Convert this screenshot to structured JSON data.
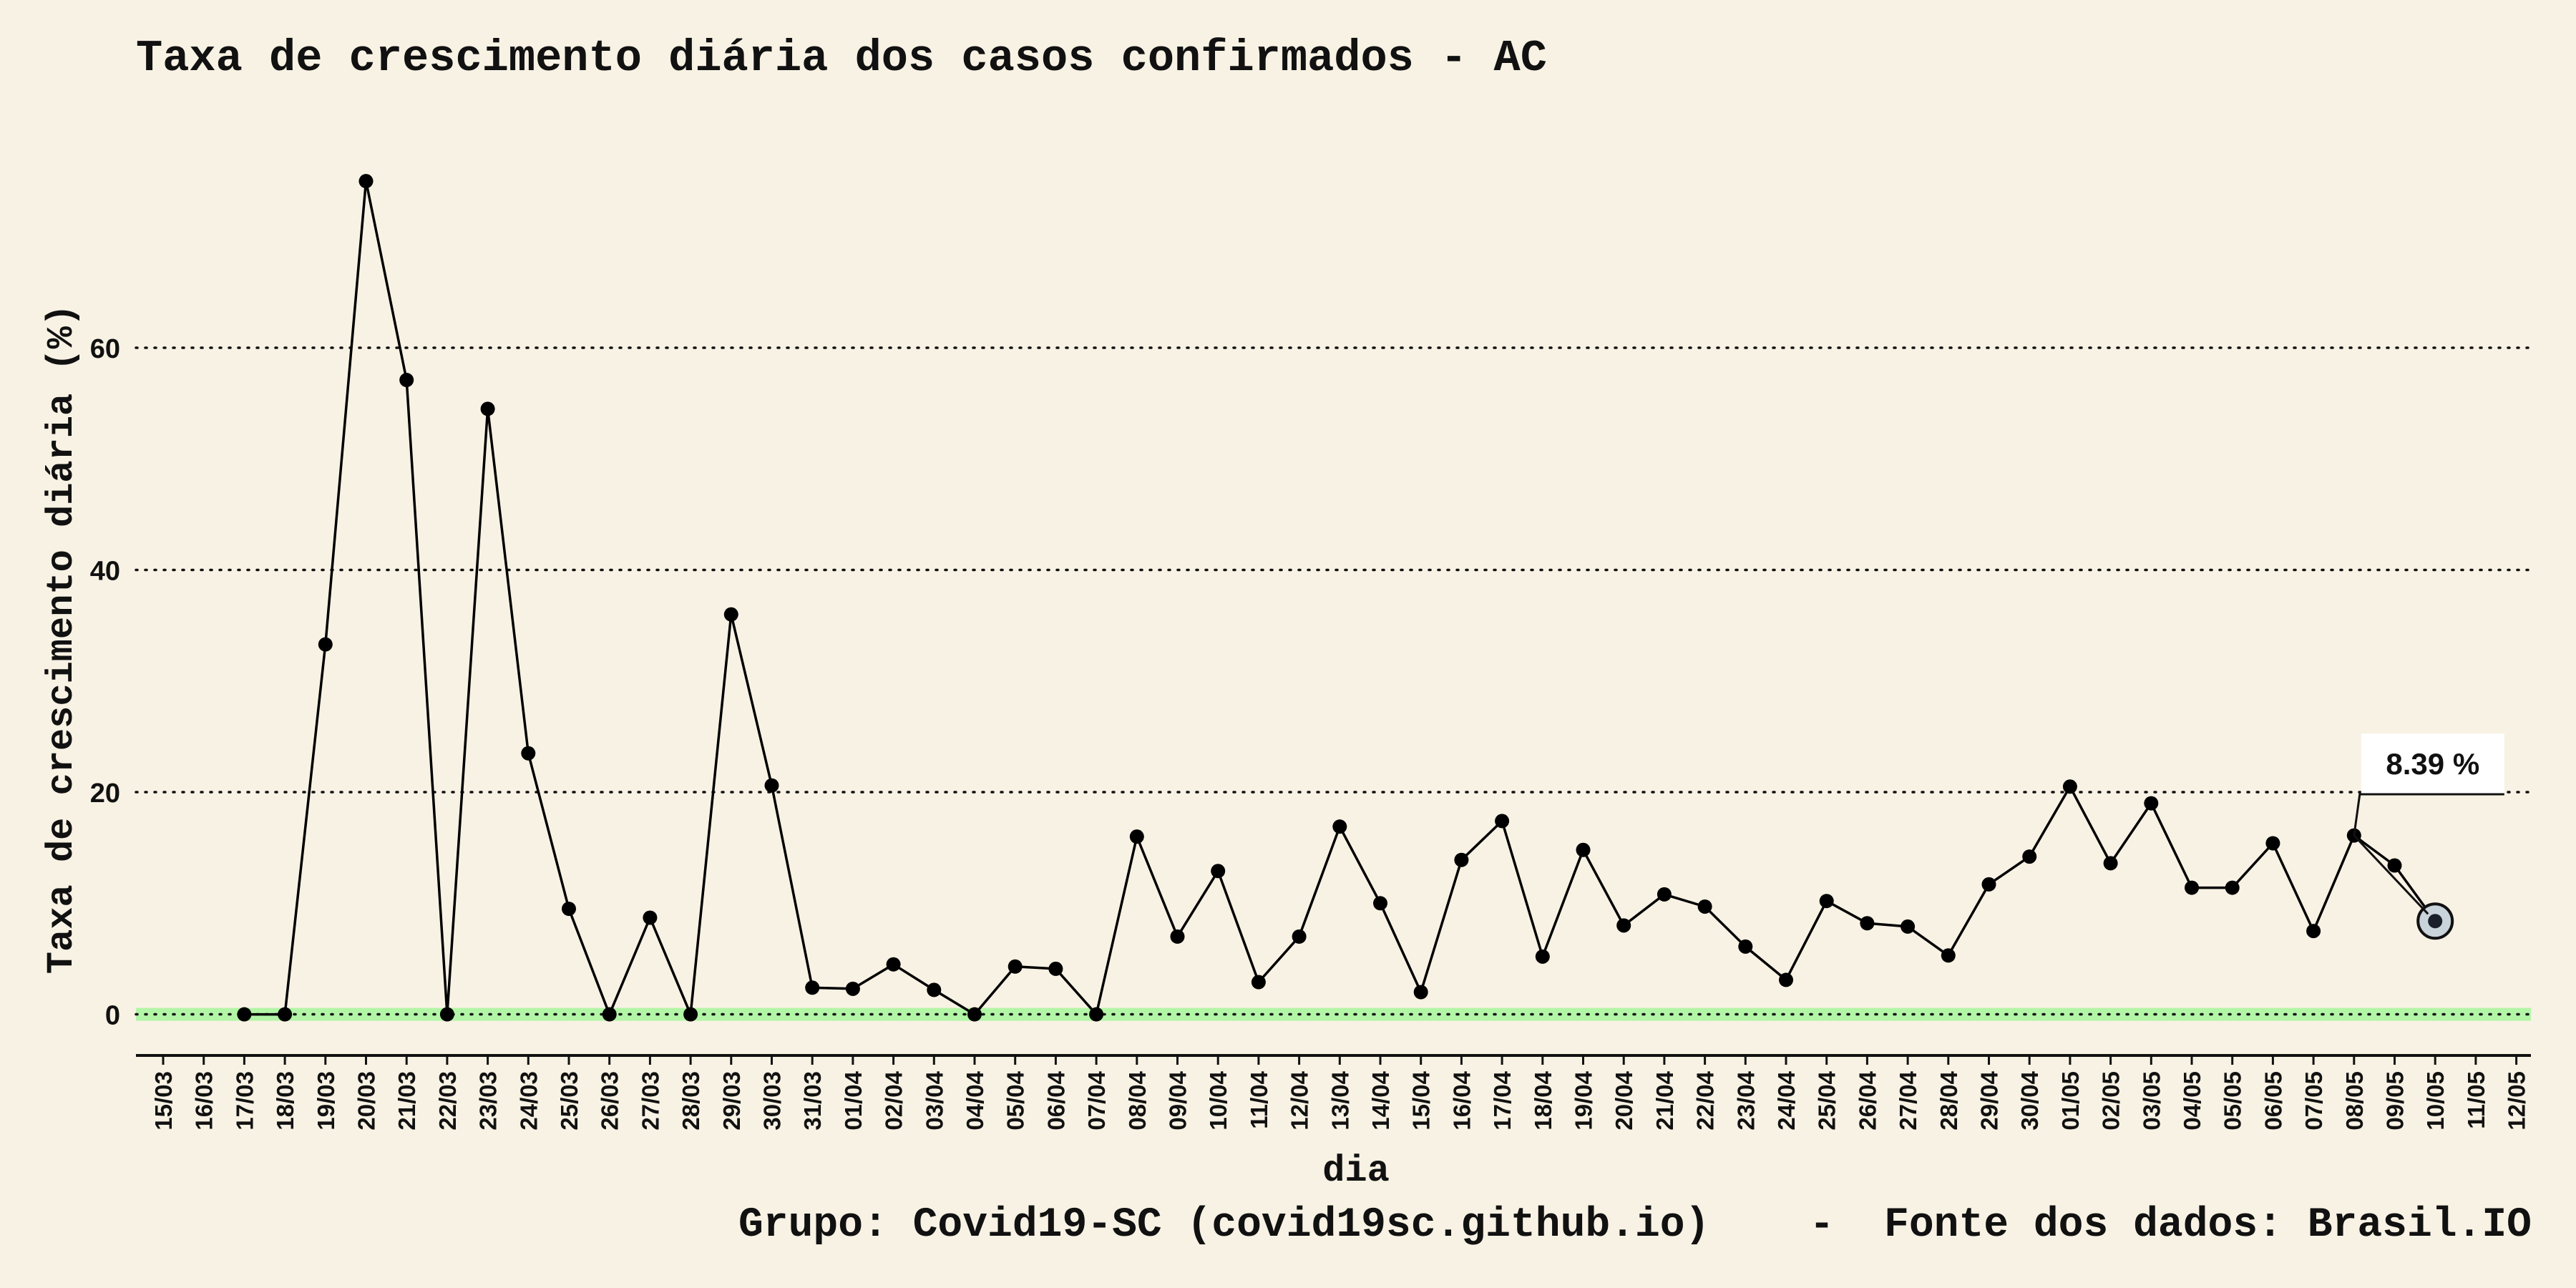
{
  "chart_data": {
    "type": "line",
    "title": "Taxa de crescimento diária dos casos confirmados - AC",
    "xlabel": "dia",
    "ylabel": "Taxa de crescimento diária (%)",
    "ylim": [
      -3.7,
      81
    ],
    "y_ticks": [
      0,
      20,
      40,
      60
    ],
    "grid": "horizontal dotted",
    "reference_band": {
      "y": 0,
      "color": "#b3f5a6"
    },
    "categories": [
      "15/03",
      "16/03",
      "17/03",
      "18/03",
      "19/03",
      "20/03",
      "21/03",
      "22/03",
      "23/03",
      "24/03",
      "25/03",
      "26/03",
      "27/03",
      "28/03",
      "29/03",
      "30/03",
      "31/03",
      "01/04",
      "02/04",
      "03/04",
      "04/04",
      "05/04",
      "06/04",
      "07/04",
      "08/04",
      "09/04",
      "10/04",
      "11/04",
      "12/04",
      "13/04",
      "14/04",
      "15/04",
      "16/04",
      "17/04",
      "18/04",
      "19/04",
      "20/04",
      "21/04",
      "22/04",
      "23/04",
      "24/04",
      "25/04",
      "26/04",
      "27/04",
      "28/04",
      "29/04",
      "30/04",
      "01/05",
      "02/05",
      "03/05",
      "04/05",
      "05/05",
      "06/05",
      "07/05",
      "08/05",
      "09/05",
      "10/05",
      "11/05",
      "12/05"
    ],
    "series": [
      {
        "values": [
          null,
          null,
          0,
          0,
          33.3,
          75,
          57.1,
          0,
          54.5,
          23.5,
          9.5,
          0,
          8.7,
          0,
          36,
          20.6,
          2.4,
          2.3,
          4.5,
          2.2,
          0,
          4.3,
          4.1,
          0,
          16,
          7,
          12.9,
          2.9,
          7,
          16.9,
          10,
          2,
          13.9,
          17.4,
          5.2,
          14.8,
          8,
          10.8,
          9.7,
          6.1,
          3.1,
          10.2,
          8.2,
          7.9,
          5.3,
          11.7,
          14.2,
          20.5,
          13.6,
          19,
          11.4,
          11.4,
          15.4,
          7.5,
          16.1,
          13.4,
          8.39,
          null,
          null
        ],
        "color": "#000000"
      }
    ],
    "highlight": {
      "category": "10/05",
      "value": 8.39,
      "label": "8.39 %",
      "fill": "#c9d3da"
    },
    "caption": "Grupo: Covid19-SC (covid19sc.github.io)    -  Fonte dos dados: Brasil.IO"
  }
}
